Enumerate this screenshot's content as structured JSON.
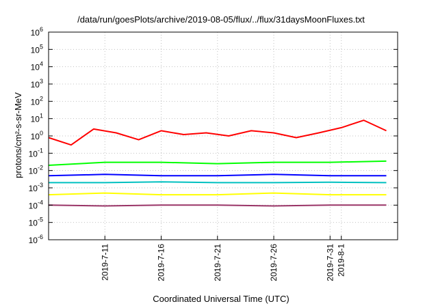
{
  "chart_data": {
    "type": "line",
    "title": "/data/run/goesPlots/archive/2019-08-05/flux/../flux/31daysMoonFluxes.txt",
    "xlabel": "Coordinated Universal Time (UTC)",
    "ylabel": "protons/cm²-s-sr-MeV",
    "yscale": "log",
    "ylim": [
      1e-06,
      1000000.0
    ],
    "xlim": [
      "2019-07-06",
      "2019-08-06"
    ],
    "x_ticks": [
      "2019-7-11",
      "2019-7-16",
      "2019-7-21",
      "2019-7-26",
      "2019-7-31",
      "2019-8-1"
    ],
    "y_ticks": [
      {
        "base": "10",
        "exp": "-6"
      },
      {
        "base": "10",
        "exp": "-5"
      },
      {
        "base": "10",
        "exp": "-4"
      },
      {
        "base": "10",
        "exp": "-3"
      },
      {
        "base": "10",
        "exp": "-2"
      },
      {
        "base": "10",
        "exp": "-1"
      },
      {
        "base": "10",
        "exp": "0"
      },
      {
        "base": "10",
        "exp": "1"
      },
      {
        "base": "10",
        "exp": "2"
      },
      {
        "base": "10",
        "exp": "3"
      },
      {
        "base": "10",
        "exp": "4"
      },
      {
        "base": "10",
        "exp": "5"
      },
      {
        "base": "10",
        "exp": "6"
      }
    ],
    "grid": true,
    "legend": "none",
    "series": [
      {
        "color": "#ff0000",
        "x": [
          "2019-07-06",
          "2019-07-08",
          "2019-07-10",
          "2019-07-12",
          "2019-07-14",
          "2019-07-16",
          "2019-07-18",
          "2019-07-20",
          "2019-07-22",
          "2019-07-24",
          "2019-07-26",
          "2019-07-28",
          "2019-07-30",
          "2019-08-01",
          "2019-08-03",
          "2019-08-05"
        ],
        "y": [
          0.8,
          0.3,
          2.5,
          1.5,
          0.6,
          2,
          1.2,
          1.5,
          1.0,
          2,
          1.5,
          0.8,
          1.5,
          3,
          8,
          2
        ]
      },
      {
        "color": "#00ff00",
        "x": [
          "2019-07-06",
          "2019-07-11",
          "2019-07-16",
          "2019-07-21",
          "2019-07-26",
          "2019-07-31",
          "2019-08-05"
        ],
        "y": [
          0.02,
          0.03,
          0.03,
          0.025,
          0.03,
          0.03,
          0.035
        ]
      },
      {
        "color": "#0000ff",
        "x": [
          "2019-07-06",
          "2019-07-11",
          "2019-07-16",
          "2019-07-21",
          "2019-07-26",
          "2019-07-31",
          "2019-08-05"
        ],
        "y": [
          0.005,
          0.006,
          0.005,
          0.005,
          0.006,
          0.005,
          0.005
        ]
      },
      {
        "color": "#00c0c0",
        "x": [
          "2019-07-06",
          "2019-07-11",
          "2019-07-16",
          "2019-07-21",
          "2019-07-26",
          "2019-07-31",
          "2019-08-05"
        ],
        "y": [
          0.002,
          0.002,
          0.0022,
          0.002,
          0.002,
          0.0021,
          0.002
        ]
      },
      {
        "color": "#ffff00",
        "x": [
          "2019-07-06",
          "2019-07-11",
          "2019-07-16",
          "2019-07-21",
          "2019-07-26",
          "2019-07-31",
          "2019-08-05"
        ],
        "y": [
          0.0004,
          0.0005,
          0.0004,
          0.0004,
          0.0005,
          0.0004,
          0.0004
        ]
      },
      {
        "color": "#993366",
        "x": [
          "2019-07-06",
          "2019-07-11",
          "2019-07-16",
          "2019-07-21",
          "2019-07-26",
          "2019-07-31",
          "2019-08-05"
        ],
        "y": [
          0.0001,
          9e-05,
          0.0001,
          0.0001,
          9e-05,
          0.0001,
          0.0001
        ]
      }
    ]
  }
}
